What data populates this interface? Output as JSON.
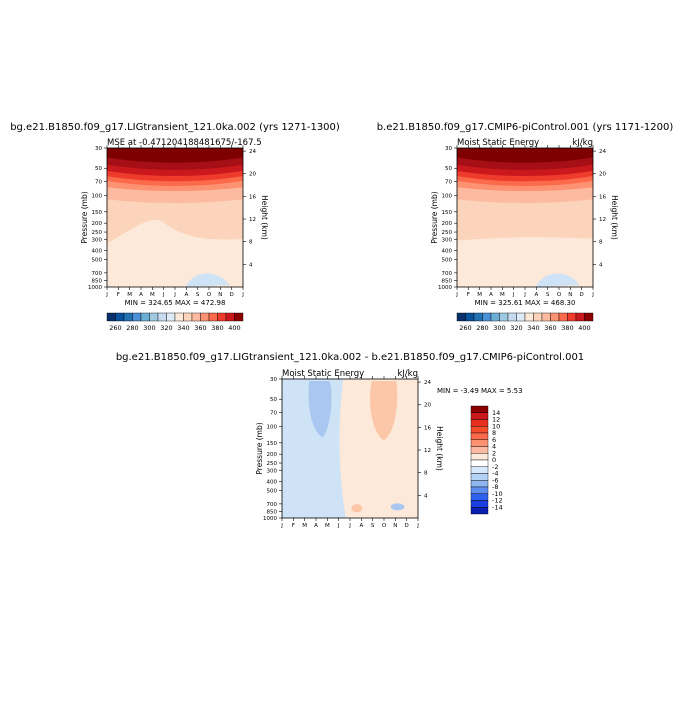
{
  "chart_data": [
    {
      "type": "heatmap",
      "title": "bg.e21.B1850.f09_g17.LIGtransient_121.0ka.002 (yrs 1271-1300)",
      "subtitle_left": "MSE at -0.471204188481675/-167.5",
      "xlabel": "",
      "ylabel": "Pressure (mb)",
      "ylabel_right": "Height (km)",
      "x_ticks": [
        "J",
        "F",
        "M",
        "A",
        "M",
        "J",
        "J",
        "A",
        "S",
        "O",
        "N",
        "D",
        "J"
      ],
      "y_ticks": [
        "30",
        "50",
        "70",
        "100",
        "150",
        "200",
        "250",
        "300",
        "400",
        "500",
        "700",
        "850",
        "1000"
      ],
      "y_ticks_right": [
        "24",
        "20",
        "16",
        "12",
        "8",
        "4"
      ],
      "bands": [
        {
          "top": 30,
          "bottom": 40,
          "level": 400
        },
        {
          "top": 40,
          "bottom": 48,
          "level": 390
        },
        {
          "top": 48,
          "bottom": 56,
          "level": 380
        },
        {
          "top": 56,
          "bottom": 64,
          "level": 370
        },
        {
          "top": 64,
          "bottom": 72,
          "level": 360
        },
        {
          "top": 72,
          "bottom": 85,
          "level": 350
        },
        {
          "top": 85,
          "bottom": 115,
          "level": 340
        },
        {
          "top": 115,
          "bottom": 330,
          "level": 330
        },
        {
          "top": 330,
          "bottom": 1000,
          "level": 320
        }
      ],
      "min_max": "MIN = 324.65  MAX = 472.98"
    },
    {
      "type": "heatmap",
      "title": "b.e21.B1850.f09_g17.CMIP6-piControl.001 (yrs 1171-1200)",
      "subtitle_left": "Moist Static Energy",
      "subtitle_right": "kJ/kg",
      "xlabel": "",
      "ylabel": "Pressure (mb)",
      "ylabel_right": "Height (km)",
      "x_ticks": [
        "J",
        "F",
        "M",
        "A",
        "M",
        "J",
        "J",
        "A",
        "S",
        "O",
        "N",
        "D",
        "J"
      ],
      "y_ticks": [
        "30",
        "50",
        "70",
        "100",
        "150",
        "200",
        "250",
        "300",
        "400",
        "500",
        "700",
        "850",
        "1000"
      ],
      "y_ticks_right": [
        "24",
        "20",
        "16",
        "12",
        "8",
        "4"
      ],
      "bands": [
        {
          "top": 30,
          "bottom": 40,
          "level": 400
        },
        {
          "top": 40,
          "bottom": 48,
          "level": 390
        },
        {
          "top": 48,
          "bottom": 56,
          "level": 380
        },
        {
          "top": 56,
          "bottom": 64,
          "level": 370
        },
        {
          "top": 64,
          "bottom": 72,
          "level": 360
        },
        {
          "top": 72,
          "bottom": 85,
          "level": 350
        },
        {
          "top": 85,
          "bottom": 115,
          "level": 340
        },
        {
          "top": 115,
          "bottom": 310,
          "level": 330
        },
        {
          "top": 310,
          "bottom": 1000,
          "level": 320
        }
      ],
      "min_max": "MIN = 325.61  MAX = 468.30"
    },
    {
      "type": "heatmap",
      "title": "bg.e21.B1850.f09_g17.LIGtransient_121.0ka.002 - b.e21.B1850.f09_g17.CMIP6-piControl.001",
      "subtitle_left": "Moist Static Energy",
      "subtitle_right": "kJ/kg",
      "xlabel": "",
      "ylabel": "Pressure (mb)",
      "ylabel_right": "Height (km)",
      "x_ticks": [
        "J",
        "F",
        "M",
        "A",
        "M",
        "J",
        "J",
        "A",
        "S",
        "O",
        "N",
        "D",
        "J"
      ],
      "y_ticks": [
        "30",
        "50",
        "70",
        "100",
        "150",
        "200",
        "250",
        "300",
        "400",
        "500",
        "700",
        "850",
        "1000"
      ],
      "y_ticks_right": [
        "24",
        "20",
        "16",
        "12",
        "8",
        "4"
      ],
      "min_max": "MIN =  -3.49  MAX =   5.53"
    }
  ],
  "colorbar_abs": {
    "levels": [
      "260",
      "280",
      "300",
      "320",
      "340",
      "360",
      "380",
      "400"
    ],
    "colors": [
      "#08306b",
      "#08519c",
      "#2171b5",
      "#4a90d9",
      "#6baed6",
      "#9ecae1",
      "#c6dbef",
      "#deebf7",
      "#fde9da",
      "#fcd4bb",
      "#fcbba1",
      "#fc9272",
      "#fb6a4a",
      "#ef3b2c",
      "#cb181d",
      "#8b0000"
    ]
  },
  "colorbar_diff": {
    "levels": [
      "14",
      "12",
      "10",
      "8",
      "6",
      "4",
      "2",
      "0",
      "-2",
      "-4",
      "-6",
      "-8",
      "-10",
      "-12",
      "-14"
    ],
    "colors": [
      "#8b0000",
      "#cb181d",
      "#e6301f",
      "#f44d2c",
      "#fb6a4a",
      "#fc9272",
      "#fcbba1",
      "#fde9da",
      "#ffffff",
      "#d6e8fb",
      "#b4d2f5",
      "#8fb6ee",
      "#5e8ff0",
      "#2f62ec",
      "#1a3ee0",
      "#0a1fb0"
    ]
  },
  "shade_colors": {
    "320": "#fde9da",
    "330": "#fcd4bb",
    "340": "#fcbba1",
    "350": "#fc9272",
    "360": "#fb6a4a",
    "370": "#ef3b2c",
    "380": "#cb181d",
    "390": "#a50f15",
    "400": "#7f0000",
    "low_blue": "#cfe3f7",
    "diff_pos": "#fde9da",
    "diff_pos2": "#fcc7a8",
    "diff_neg": "#cfe3f7",
    "diff_neg2": "#a9c7f0"
  }
}
